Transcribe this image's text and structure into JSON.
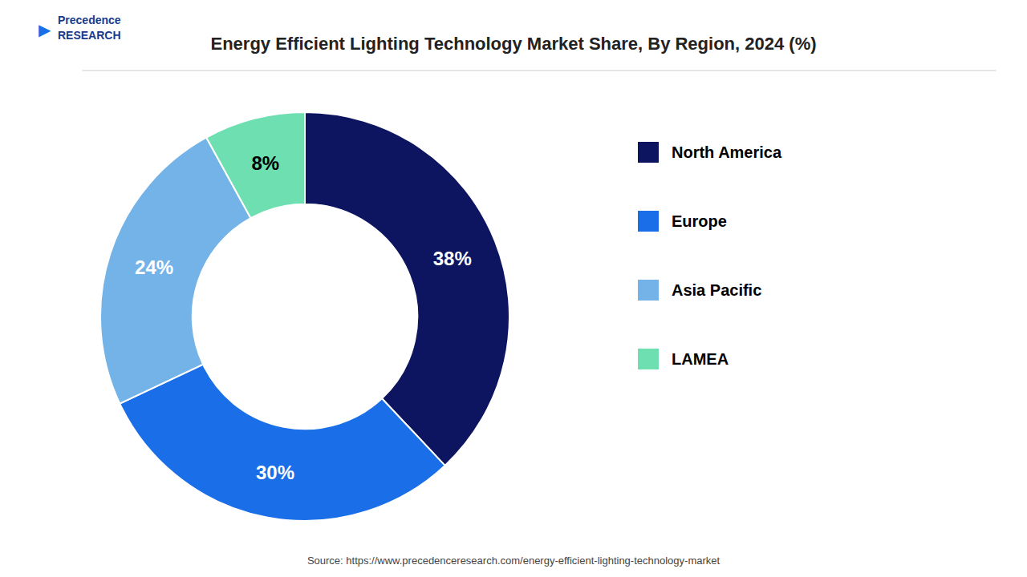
{
  "chart_data": {
    "type": "pie",
    "title": "Energy Efficient Lighting Technology Market Share, By Region, 2024 (%)",
    "categories": [
      "North America",
      "Europe",
      "Asia Pacific",
      "LAMEA"
    ],
    "values": [
      38,
      30,
      24,
      8
    ],
    "value_labels": [
      "38%",
      "30%",
      "24%",
      "8%"
    ],
    "colors": [
      "#0d1560",
      "#1a6fe8",
      "#74b3e8",
      "#6ddfb0"
    ],
    "data_labels": true,
    "legend": "right",
    "annotations": [
      "Precedence",
      "RESEARCH",
      "▶",
      "Source: https://www.precedenceresearch.com/energy-efficient-lighting-technology-market"
    ]
  }
}
